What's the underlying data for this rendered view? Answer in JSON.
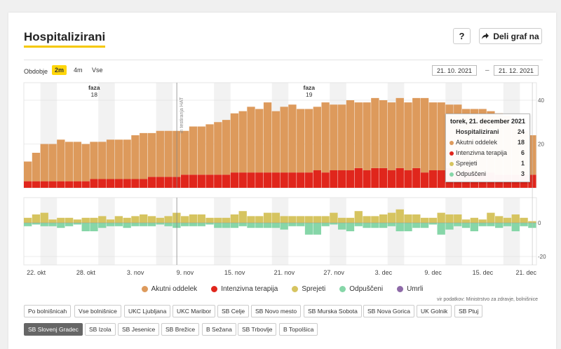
{
  "header": {
    "title": "Hospitalizirani",
    "help_label": "?",
    "share_label": "Deli graf na"
  },
  "period": {
    "label": "Obdobje",
    "options": [
      "2m",
      "4m",
      "Vse"
    ],
    "selected": "2m",
    "date_from": "21. 10. 2021",
    "date_sep": "–",
    "date_to": "21. 12. 2021"
  },
  "colors": {
    "acute": "#dd9a5c",
    "icu": "#e0261c",
    "admitted": "#d6c460",
    "discharged": "#86d6a8",
    "deceased": "#8e6aa8"
  },
  "chart_data": {
    "type": "bar",
    "x_axis": {
      "start_date": "2021-10-21",
      "end_date": "2021-12-21",
      "tick_labels": [
        "22. okt",
        "28. okt",
        "3. nov",
        "9. nov",
        "15. nov",
        "21. nov",
        "27. nov",
        "3. dec",
        "9. dec",
        "15. dec",
        "21. dec"
      ]
    },
    "top_panel": {
      "type": "stacked-bar",
      "ylim": [
        0,
        48
      ],
      "y_ticks": [
        20,
        40
      ],
      "series": [
        {
          "name": "Intenzivna terapija",
          "color": "#e0261c",
          "values": [
            3,
            3,
            3,
            3,
            3,
            3,
            3,
            3,
            4,
            4,
            4,
            4,
            4,
            4,
            4,
            5,
            5,
            5,
            5,
            6,
            6,
            6,
            6,
            6,
            6,
            7,
            7,
            7,
            7,
            7,
            7,
            7,
            7,
            7,
            7,
            8,
            7,
            8,
            8,
            8,
            9,
            8,
            9,
            9,
            8,
            9,
            8,
            9,
            7,
            8,
            8,
            9,
            7,
            8,
            7,
            7,
            7,
            6,
            6,
            6,
            6,
            6
          ]
        },
        {
          "name": "Akutni oddelek",
          "color": "#dd9a5c",
          "values": [
            9,
            13,
            17,
            17,
            19,
            18,
            18,
            17,
            17,
            17,
            18,
            18,
            18,
            20,
            21,
            20,
            21,
            21,
            21,
            20,
            22,
            22,
            23,
            24,
            25,
            27,
            28,
            30,
            29,
            32,
            28,
            30,
            31,
            29,
            29,
            29,
            32,
            30,
            30,
            32,
            30,
            31,
            32,
            31,
            31,
            32,
            31,
            32,
            34,
            31,
            31,
            29,
            31,
            28,
            29,
            29,
            28,
            28,
            27,
            24,
            20,
            18
          ]
        }
      ]
    },
    "bottom_panel": {
      "type": "diverging-bar",
      "ylim": [
        -25,
        15
      ],
      "y_ticks": [
        0,
        -20
      ],
      "series": [
        {
          "name": "Sprejeti",
          "color": "#d6c460",
          "values": [
            3,
            5,
            6,
            2,
            3,
            3,
            2,
            3,
            3,
            4,
            2,
            4,
            3,
            4,
            5,
            4,
            3,
            4,
            6,
            4,
            5,
            5,
            3,
            3,
            3,
            5,
            7,
            4,
            4,
            6,
            6,
            4,
            4,
            4,
            4,
            4,
            4,
            6,
            3,
            3,
            7,
            4,
            4,
            5,
            6,
            8,
            5,
            5,
            3,
            3,
            6,
            5,
            5,
            2,
            3,
            2,
            6,
            4,
            3,
            5,
            3,
            1
          ]
        },
        {
          "name": "Odpuščeni",
          "color": "#86d6a8",
          "values": [
            -2,
            -1,
            -2,
            -2,
            -3,
            -2,
            -1,
            -5,
            -5,
            -3,
            -2,
            -2,
            -3,
            -2,
            -2,
            -2,
            -1,
            -2,
            -3,
            -2,
            -2,
            -2,
            -1,
            -3,
            -3,
            -3,
            -2,
            -3,
            -3,
            -3,
            -3,
            -4,
            -2,
            -2,
            -7,
            -7,
            -2,
            -1,
            -4,
            -5,
            -2,
            -3,
            -3,
            -3,
            -2,
            -5,
            -5,
            -3,
            -3,
            -1,
            -7,
            -4,
            -2,
            -3,
            -5,
            -2,
            -2,
            -3,
            -2,
            -5,
            -2,
            -3
          ]
        }
      ]
    },
    "phases": [
      {
        "title": "faza",
        "number": "18"
      },
      {
        "title": "faza",
        "number": "19"
      }
    ],
    "annotation": "in testiranja HAT",
    "tooltip": {
      "date": "torek, 21. december 2021",
      "rows": [
        {
          "label": "Hospitalizirani",
          "value": "24",
          "total": true
        },
        {
          "label": "Akutni oddelek",
          "value": "18",
          "color": "#dd9a5c"
        },
        {
          "label": "Intenzivna terapija",
          "value": "6",
          "color": "#e0261c"
        },
        {
          "label": "Sprejeti",
          "value": "1",
          "color": "#d6c460"
        },
        {
          "label": "Odpuščeni",
          "value": "3",
          "color": "#86d6a8"
        }
      ]
    },
    "legend": [
      {
        "label": "Akutni oddelek",
        "color": "#dd9a5c"
      },
      {
        "label": "Intenzivna terapija",
        "color": "#e0261c"
      },
      {
        "label": "Sprejeti",
        "color": "#d6c460"
      },
      {
        "label": "Odpuščeni",
        "color": "#86d6a8"
      },
      {
        "label": "Umrli",
        "color": "#8e6aa8"
      }
    ]
  },
  "source": "vir podatkov: Ministrstvo za zdravje, bolnišnice",
  "hospitals": {
    "row1": [
      "Po bolnišnicah",
      "Vse bolnišnice",
      "UKC Ljubljana",
      "UKC Maribor",
      "SB Celje",
      "SB Novo mesto",
      "SB Murska Sobota",
      "SB Nova Gorica",
      "UK Golnik",
      "SB Ptuj"
    ],
    "row2": [
      "SB Slovenj Gradec",
      "SB Izola",
      "SB Jesenice",
      "SB Brežice",
      "B Sežana",
      "SB Trbovlje",
      "B Topolšica"
    ],
    "selected": "SB Slovenj Gradec"
  }
}
